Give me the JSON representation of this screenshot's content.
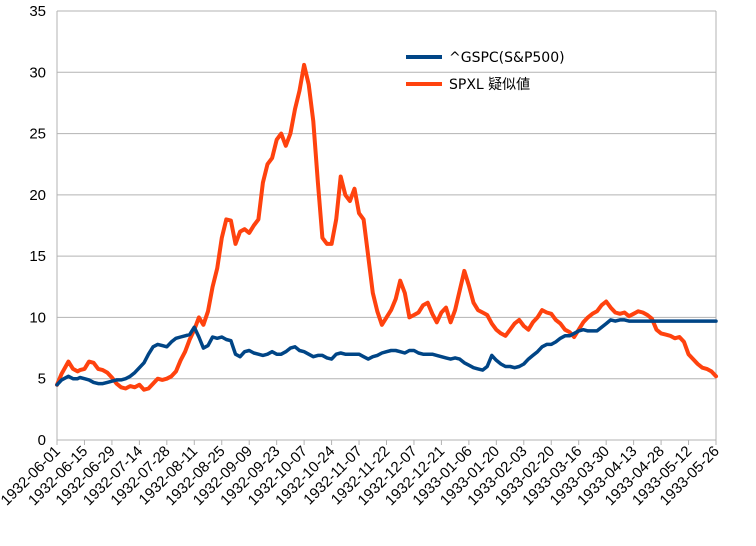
{
  "chart_data": {
    "type": "line",
    "title": "",
    "xlabel": "",
    "ylabel": "",
    "ylim": [
      0,
      35
    ],
    "yticks": [
      0,
      5,
      10,
      15,
      20,
      25,
      30,
      35
    ],
    "xticks": [
      "1932-06-01",
      "1932-06-15",
      "1932-06-29",
      "1932-07-14",
      "1932-07-28",
      "1932-08-11",
      "1932-08-25",
      "1932-09-09",
      "1932-09-23",
      "1932-10-07",
      "1932-10-24",
      "1932-11-07",
      "1932-11-22",
      "1932-12-07",
      "1932-12-21",
      "1933-01-06",
      "1933-01-20",
      "1933-02-03",
      "1933-02-20",
      "1933-03-16",
      "1933-03-30",
      "1933-04-13",
      "1933-04-28",
      "1933-05-12",
      "1933-05-26"
    ],
    "grid": true,
    "legend_position": "top-right",
    "x": [
      0,
      2,
      5,
      7,
      9,
      10,
      12,
      14,
      16,
      18,
      20,
      22,
      24,
      26,
      28,
      30,
      32,
      34,
      36,
      38,
      40,
      42,
      44,
      46,
      48,
      50,
      52,
      54,
      56,
      58,
      60,
      62,
      64,
      66,
      68,
      70,
      72,
      74,
      76,
      78,
      80,
      82,
      84,
      86,
      88,
      90,
      92,
      94,
      96,
      98,
      100,
      102,
      104,
      106,
      108,
      110,
      112,
      114,
      116,
      118,
      120,
      122,
      124,
      126,
      128,
      130,
      132,
      134,
      136,
      138,
      140,
      142,
      144,
      146,
      148,
      150,
      152,
      154,
      156,
      158,
      160,
      162,
      164,
      166,
      168,
      170,
      172,
      174,
      176,
      178,
      180,
      182,
      184,
      186,
      188,
      190,
      192,
      194,
      196,
      198,
      200,
      202,
      204,
      206,
      208,
      210,
      212,
      214,
      216,
      218,
      220,
      222,
      224,
      226,
      228,
      230,
      232,
      234,
      236,
      238,
      240,
      242,
      244,
      246,
      248,
      250,
      252,
      254,
      256,
      258,
      260,
      262,
      264,
      266,
      268,
      270,
      272,
      274,
      276,
      278,
      280,
      282,
      284,
      286,
      288
    ],
    "series": [
      {
        "name": "^GSPC(S&P500)",
        "color": "#004586",
        "values": [
          4.5,
          4.9,
          5.2,
          5.0,
          5.0,
          5.1,
          5.0,
          4.9,
          4.7,
          4.6,
          4.6,
          4.7,
          4.8,
          4.9,
          4.9,
          5.0,
          5.2,
          5.5,
          5.9,
          6.3,
          7.0,
          7.6,
          7.8,
          7.7,
          7.6,
          8.0,
          8.3,
          8.4,
          8.5,
          8.6,
          9.2,
          8.4,
          7.5,
          7.7,
          8.4,
          8.3,
          8.4,
          8.2,
          8.1,
          7.0,
          6.8,
          7.2,
          7.3,
          7.1,
          7.0,
          6.9,
          7.0,
          7.2,
          7.0,
          7.0,
          7.2,
          7.5,
          7.6,
          7.3,
          7.2,
          7.0,
          6.8,
          6.9,
          6.9,
          6.7,
          6.6,
          7.0,
          7.1,
          7.0,
          7.0,
          7.0,
          7.0,
          6.8,
          6.6,
          6.8,
          6.9,
          7.1,
          7.2,
          7.3,
          7.3,
          7.2,
          7.1,
          7.3,
          7.3,
          7.1,
          7.0,
          7.0,
          7.0,
          6.9,
          6.8,
          6.7,
          6.6,
          6.7,
          6.6,
          6.3,
          6.1,
          5.9,
          5.8,
          5.7,
          6.0,
          6.9,
          6.5,
          6.2,
          6.0,
          6.0,
          5.9,
          6.0,
          6.2,
          6.6,
          6.9,
          7.2,
          7.6,
          7.8,
          7.8,
          8.0,
          8.3,
          8.5,
          8.5,
          8.7,
          8.9,
          9.0,
          8.9,
          8.9,
          8.9,
          9.2,
          9.5,
          9.8,
          9.7,
          9.8,
          9.8,
          9.7,
          9.7,
          9.7,
          9.7,
          9.7,
          9.7,
          9.7,
          9.7,
          9.7,
          9.7,
          9.7,
          9.7,
          9.7,
          9.7,
          9.7,
          9.7,
          9.7,
          9.7,
          9.7,
          9.7
        ]
      },
      {
        "name": "SPXL 疑似値",
        "color": "#ff420e",
        "values": [
          4.5,
          5.4,
          6.4,
          5.8,
          5.6,
          5.7,
          5.8,
          6.4,
          6.3,
          5.8,
          5.7,
          5.5,
          5.1,
          4.6,
          4.3,
          4.2,
          4.4,
          4.3,
          4.5,
          4.1,
          4.2,
          4.6,
          5.0,
          4.9,
          5.0,
          5.2,
          5.6,
          6.5,
          7.2,
          8.2,
          9.0,
          10.0,
          9.4,
          10.5,
          12.5,
          14.0,
          16.5,
          18.0,
          17.9,
          16.0,
          17.0,
          17.2,
          16.9,
          17.5,
          18.0,
          21.0,
          22.5,
          23.0,
          24.5,
          25.0,
          24.0,
          25.0,
          27.0,
          28.5,
          30.6,
          29.0,
          26.0,
          21.0,
          16.5,
          16.0,
          16.0,
          18.0,
          21.5,
          20.0,
          19.5,
          20.5,
          18.5,
          18.0,
          15.0,
          12.0,
          10.5,
          9.4,
          10.0,
          10.6,
          11.5,
          13.0,
          12.0,
          10.0,
          10.2,
          10.4,
          11.0,
          11.2,
          10.3,
          9.6,
          10.4,
          10.8,
          9.6,
          10.6,
          12.2,
          13.8,
          12.6,
          11.2,
          10.6,
          10.4,
          10.2,
          9.5,
          9.0,
          8.7,
          8.5,
          9.0,
          9.5,
          9.8,
          9.3,
          9.0,
          9.6,
          10.0,
          10.6,
          10.4,
          10.3,
          9.8,
          9.5,
          9.0,
          8.8,
          8.4,
          9.0,
          9.6,
          10.0,
          10.3,
          10.5,
          11.0,
          11.3,
          10.8,
          10.4,
          10.3,
          10.4,
          10.1,
          10.3,
          10.5,
          10.4,
          10.2,
          9.9,
          9.0,
          8.7,
          8.6,
          8.5,
          8.3,
          8.4,
          8.0,
          7.0,
          6.6,
          6.2,
          5.9,
          5.8,
          5.6,
          5.2
        ]
      }
    ]
  }
}
